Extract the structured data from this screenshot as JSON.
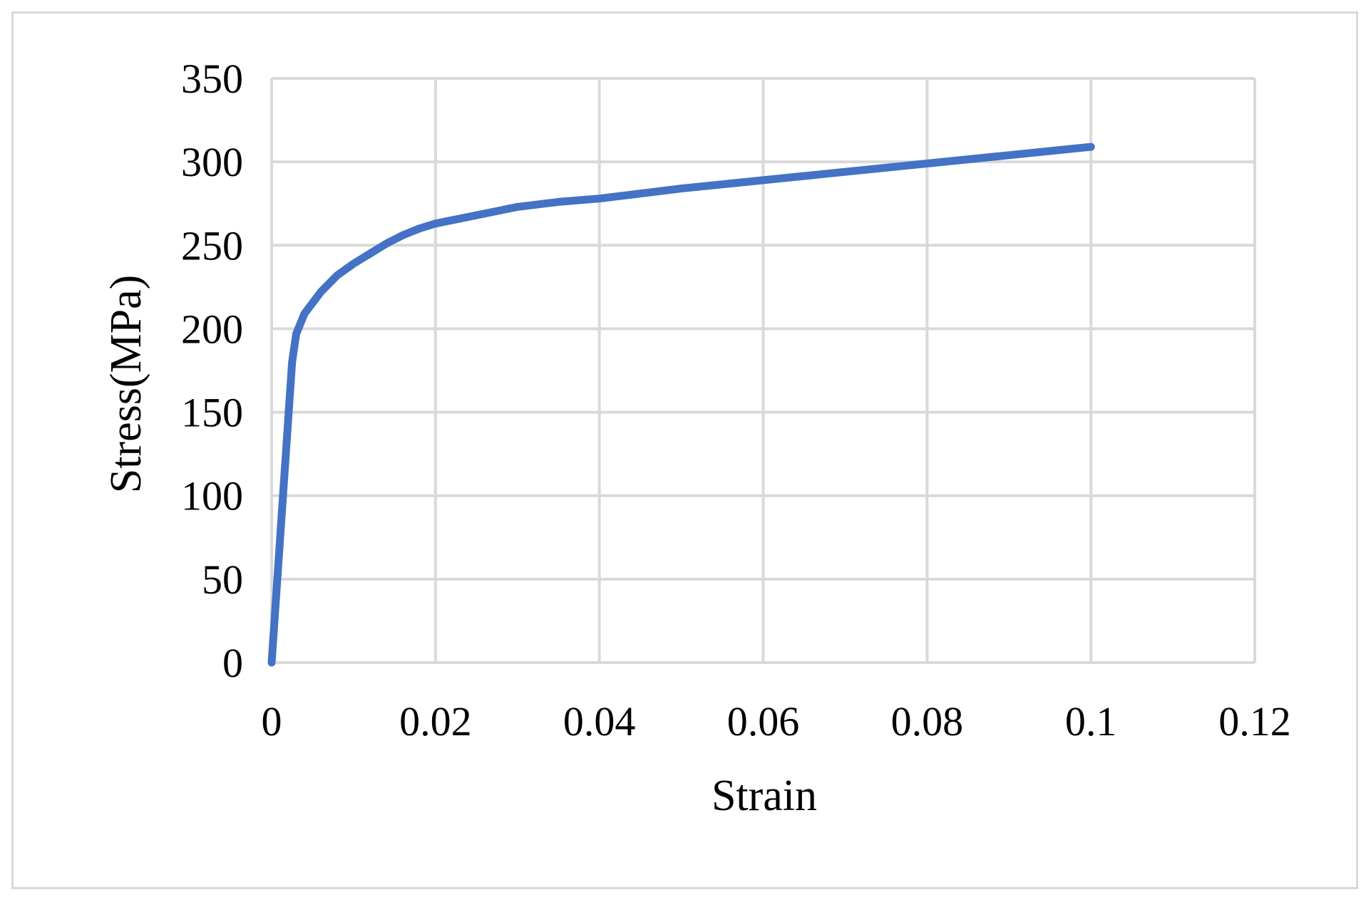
{
  "chart_data": {
    "type": "line",
    "title": "",
    "xlabel": "Strain",
    "ylabel": "Stress(MPa)",
    "xlim": [
      0,
      0.12
    ],
    "ylim": [
      0,
      350
    ],
    "x_ticks": [
      0,
      0.02,
      0.04,
      0.06,
      0.08,
      0.1,
      0.12
    ],
    "x_tick_labels": [
      "0",
      "0.02",
      "0.04",
      "0.06",
      "0.08",
      "0.1",
      "0.12"
    ],
    "y_ticks": [
      0,
      50,
      100,
      150,
      200,
      250,
      300,
      350
    ],
    "y_tick_labels": [
      "0",
      "50",
      "100",
      "150",
      "200",
      "250",
      "300",
      "350"
    ],
    "grid": true,
    "legend": "none",
    "colors": {
      "series": "#4472c4",
      "grid": "#d9d9d9",
      "frame": "#d9d9d9"
    },
    "series": [
      {
        "x": [
          0,
          0.0025,
          0.003,
          0.004,
          0.006,
          0.008,
          0.01,
          0.012,
          0.014,
          0.016,
          0.018,
          0.02,
          0.025,
          0.03,
          0.035,
          0.04,
          0.05,
          0.06,
          0.07,
          0.08,
          0.09,
          0.1
        ],
        "y": [
          0,
          180,
          197,
          209,
          222,
          232,
          239,
          245,
          251,
          256,
          260,
          263,
          268,
          273,
          276,
          278,
          284,
          289,
          294,
          299,
          304,
          309
        ]
      }
    ]
  }
}
